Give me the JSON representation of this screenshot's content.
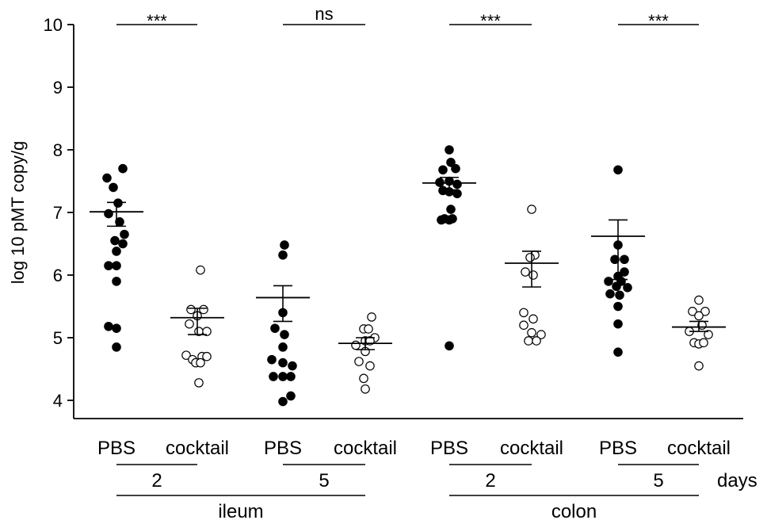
{
  "chart_data": {
    "type": "scatter",
    "title": "",
    "ylabel": "log 10 pMT copy/g",
    "xlabel": "",
    "ylim": [
      4,
      10
    ],
    "yticks": [
      4,
      5,
      6,
      7,
      8,
      9,
      10
    ],
    "categories": [
      "PBS",
      "cocktail",
      "PBS",
      "cocktail",
      "PBS",
      "cocktail",
      "PBS",
      "cocktail"
    ],
    "groups": [
      {
        "label": "PBS",
        "day": "2",
        "tissue": "ileum",
        "marker": "filled",
        "mean": 7.01,
        "error": [
          6.78,
          7.16
        ],
        "points": [
          [
            0.2,
            7.7
          ],
          [
            -0.3,
            7.55
          ],
          [
            -0.1,
            7.4
          ],
          [
            0.05,
            7.15
          ],
          [
            -0.25,
            6.98
          ],
          [
            0.1,
            6.85
          ],
          [
            0.25,
            6.65
          ],
          [
            -0.05,
            6.55
          ],
          [
            0.2,
            6.5
          ],
          [
            0.0,
            6.38
          ],
          [
            -0.25,
            6.15
          ],
          [
            0.0,
            6.15
          ],
          [
            0.0,
            5.9
          ],
          [
            -0.25,
            5.18
          ],
          [
            0.0,
            5.15
          ],
          [
            0.0,
            4.85
          ]
        ]
      },
      {
        "label": "cocktail",
        "day": "2",
        "tissue": "ileum",
        "marker": "open",
        "mean": 5.32,
        "error": [
          5.05,
          5.47
        ],
        "points": [
          [
            0.1,
            6.08
          ],
          [
            -0.2,
            5.45
          ],
          [
            0.2,
            5.45
          ],
          [
            0.0,
            5.35
          ],
          [
            -0.25,
            5.22
          ],
          [
            0.05,
            5.1
          ],
          [
            0.3,
            5.1
          ],
          [
            -0.35,
            4.72
          ],
          [
            -0.15,
            4.65
          ],
          [
            0.15,
            4.7
          ],
          [
            0.3,
            4.7
          ],
          [
            -0.05,
            4.6
          ],
          [
            0.1,
            4.6
          ],
          [
            0.05,
            4.28
          ]
        ]
      },
      {
        "label": "PBS",
        "day": "5",
        "tissue": "ileum",
        "marker": "filled",
        "mean": 5.64,
        "error": [
          5.26,
          5.83
        ],
        "points": [
          [
            0.05,
            6.48
          ],
          [
            0.0,
            6.32
          ],
          [
            0.0,
            5.4
          ],
          [
            -0.25,
            5.15
          ],
          [
            0.05,
            5.05
          ],
          [
            0.0,
            4.85
          ],
          [
            -0.35,
            4.65
          ],
          [
            0.0,
            4.6
          ],
          [
            0.3,
            4.55
          ],
          [
            -0.3,
            4.38
          ],
          [
            0.0,
            4.38
          ],
          [
            0.25,
            4.38
          ],
          [
            0.25,
            4.07
          ],
          [
            0.0,
            3.98
          ]
        ]
      },
      {
        "label": "cocktail",
        "day": "5",
        "tissue": "ileum",
        "marker": "open",
        "mean": 4.91,
        "error": [
          4.81,
          5.0
        ],
        "points": [
          [
            0.2,
            5.33
          ],
          [
            -0.05,
            5.14
          ],
          [
            0.1,
            5.14
          ],
          [
            0.3,
            5.0
          ],
          [
            0.0,
            4.95
          ],
          [
            0.15,
            4.95
          ],
          [
            -0.3,
            4.88
          ],
          [
            0.0,
            4.78
          ],
          [
            -0.2,
            4.62
          ],
          [
            0.15,
            4.55
          ],
          [
            -0.05,
            4.35
          ],
          [
            0.0,
            4.18
          ]
        ]
      },
      {
        "label": "PBS",
        "day": "2",
        "tissue": "colon",
        "marker": "filled",
        "mean": 7.47,
        "error": [
          7.36,
          7.56
        ],
        "points": [
          [
            0.0,
            8.0
          ],
          [
            0.05,
            7.8
          ],
          [
            -0.2,
            7.68
          ],
          [
            0.2,
            7.7
          ],
          [
            -0.3,
            7.48
          ],
          [
            0.0,
            7.5
          ],
          [
            0.25,
            7.45
          ],
          [
            -0.2,
            7.35
          ],
          [
            0.0,
            7.33
          ],
          [
            0.25,
            7.3
          ],
          [
            0.05,
            7.05
          ],
          [
            -0.15,
            6.9
          ],
          [
            0.1,
            6.9
          ],
          [
            -0.25,
            6.88
          ],
          [
            0.0,
            6.88
          ],
          [
            0.0,
            4.87
          ]
        ]
      },
      {
        "label": "cocktail",
        "day": "2",
        "tissue": "colon",
        "marker": "open",
        "mean": 6.19,
        "error": [
          5.81,
          6.38
        ],
        "points": [
          [
            0.0,
            7.05
          ],
          [
            0.1,
            6.32
          ],
          [
            -0.05,
            6.28
          ],
          [
            -0.2,
            6.05
          ],
          [
            0.05,
            6.0
          ],
          [
            -0.25,
            5.4
          ],
          [
            0.05,
            5.3
          ],
          [
            -0.25,
            5.2
          ],
          [
            0.0,
            5.08
          ],
          [
            0.3,
            5.05
          ],
          [
            -0.1,
            4.95
          ],
          [
            0.15,
            4.95
          ]
        ]
      },
      {
        "label": "PBS",
        "day": "5",
        "tissue": "colon",
        "marker": "filled",
        "mean": 6.62,
        "error": [
          5.93,
          6.88
        ],
        "points": [
          [
            0.0,
            7.68
          ],
          [
            0.0,
            6.48
          ],
          [
            -0.1,
            6.25
          ],
          [
            0.2,
            6.25
          ],
          [
            0.2,
            6.05
          ],
          [
            0.0,
            5.98
          ],
          [
            -0.3,
            5.9
          ],
          [
            0.1,
            5.9
          ],
          [
            -0.05,
            5.82
          ],
          [
            0.3,
            5.8
          ],
          [
            -0.25,
            5.7
          ],
          [
            0.05,
            5.68
          ],
          [
            0.0,
            5.5
          ],
          [
            0.0,
            5.22
          ],
          [
            0.0,
            4.77
          ]
        ]
      },
      {
        "label": "cocktail",
        "day": "5",
        "tissue": "colon",
        "marker": "open",
        "mean": 5.17,
        "error": [
          5.1,
          5.26
        ],
        "points": [
          [
            0.0,
            5.6
          ],
          [
            -0.2,
            5.42
          ],
          [
            0.2,
            5.42
          ],
          [
            0.0,
            5.35
          ],
          [
            0.1,
            5.2
          ],
          [
            -0.3,
            5.1
          ],
          [
            0.3,
            5.05
          ],
          [
            -0.15,
            4.92
          ],
          [
            0.0,
            4.9
          ],
          [
            0.15,
            4.92
          ],
          [
            0.0,
            4.55
          ]
        ]
      }
    ],
    "significance": [
      {
        "label": "***",
        "from": 0,
        "to": 1
      },
      {
        "label": "ns",
        "from": 2,
        "to": 3
      },
      {
        "label": "***",
        "from": 4,
        "to": 5
      },
      {
        "label": "***",
        "from": 6,
        "to": 7
      }
    ],
    "day_groups": [
      {
        "label": "2",
        "from": 0,
        "to": 1
      },
      {
        "label": "5",
        "from": 2,
        "to": 3
      },
      {
        "label": "2",
        "from": 4,
        "to": 5
      },
      {
        "label": "5",
        "from": 6,
        "to": 7
      }
    ],
    "days_label": "days",
    "tissue_groups": [
      {
        "label": "ileum",
        "from": 0,
        "to": 3
      },
      {
        "label": "colon",
        "from": 4,
        "to": 7
      }
    ],
    "marker_colors": {
      "filled": "#000000",
      "open": "#ffffff"
    },
    "line_color": "#000000"
  }
}
